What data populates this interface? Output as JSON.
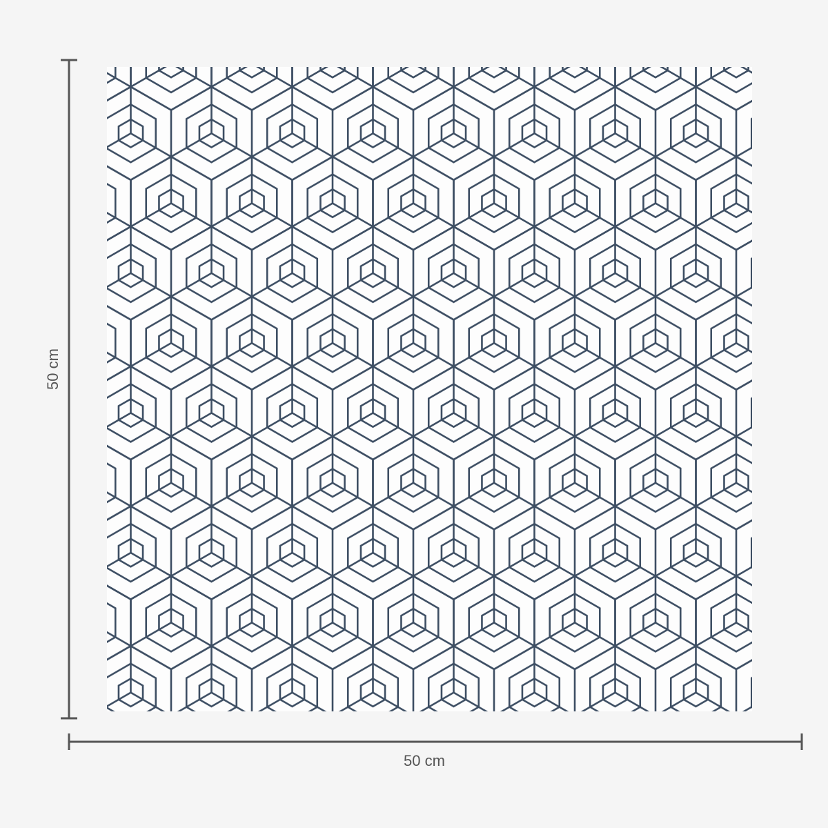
{
  "product": {
    "pattern": "geometric-hexagon-cube-line-pattern",
    "line_color": "#3d4e63",
    "background_color": "#fdfdfd"
  },
  "dimensions": {
    "width_label": "50 cm",
    "height_label": "50 cm",
    "line_color": "#555555"
  }
}
